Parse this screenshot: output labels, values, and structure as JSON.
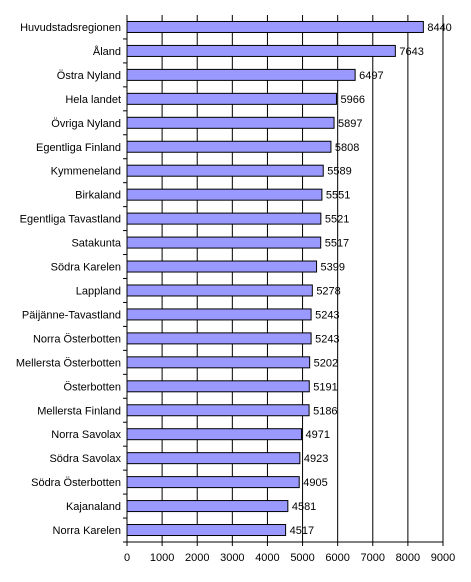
{
  "chart_data": {
    "type": "bar",
    "orientation": "horizontal",
    "title": "",
    "xlabel": "",
    "ylabel": "",
    "categories": [
      "Huvudstadsregionen",
      "Åland",
      "Östra Nyland",
      "Hela landet",
      "Övriga Nyland",
      "Egentliga Finland",
      "Kymmeneland",
      "Birkaland",
      "Egentliga Tavastland",
      "Satakunta",
      "Södra Karelen",
      "Lappland",
      "Päijänne-Tavastland",
      "Norra Österbotten",
      "Mellersta Österbotten",
      "Österbotten",
      "Mellersta Finland",
      "Norra Savolax",
      "Södra Savolax",
      "Södra Österbotten",
      "Kajanaland",
      "Norra Karelen"
    ],
    "values": [
      8440,
      7643,
      6497,
      5966,
      5897,
      5808,
      5589,
      5551,
      5521,
      5517,
      5399,
      5278,
      5243,
      5243,
      5202,
      5191,
      5186,
      4971,
      4923,
      4905,
      4581,
      4517
    ],
    "data_labels": [
      "8440",
      "7643",
      "6497",
      "5966",
      "5897",
      "5808",
      "5589",
      "5551",
      "5521",
      "5517",
      "5399",
      "5278",
      "5243",
      "5243",
      "5202",
      "5191",
      "5186",
      "4971",
      "4923",
      "4905",
      "4581",
      "4517"
    ],
    "xlim": [
      0,
      9000
    ],
    "x_ticks": [
      "0",
      "1000",
      "2000",
      "3000",
      "4000",
      "5000",
      "6000",
      "7000",
      "8000",
      "9000"
    ],
    "grid": "vertical",
    "legend": "none",
    "colors": {
      "bar_fill": "#9999ff",
      "bar_stroke": "#000000",
      "grid": "#000000"
    }
  }
}
